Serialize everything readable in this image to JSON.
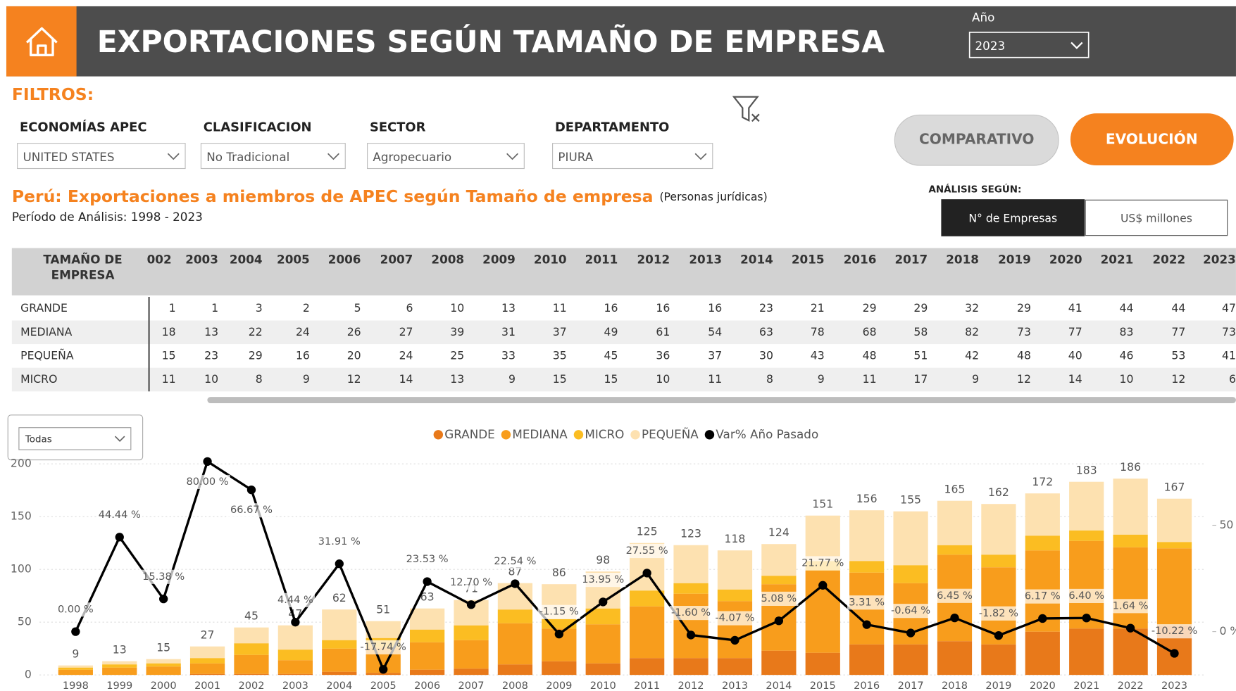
{
  "header": {
    "title": "EXPORTACIONES SEGÚN TAMAÑO DE EMPRESA",
    "year_label": "Año",
    "year_value": "2023"
  },
  "filters": {
    "title": "FILTROS:",
    "items": [
      {
        "label": "ECONOMÍAS APEC",
        "value": "UNITED STATES"
      },
      {
        "label": "CLASIFICACION",
        "value": "No Tradicional"
      },
      {
        "label": "SECTOR",
        "value": "Agropecuario"
      },
      {
        "label": "DEPARTAMENTO",
        "value": "PIURA"
      }
    ]
  },
  "buttons": [
    "COMPARATIVO",
    "EVOLUCIÓN"
  ],
  "analysis": {
    "label": "ANÁLISIS SEGÚN:",
    "options": [
      "N° de Empresas",
      "US$ millones"
    ]
  },
  "report": {
    "title": "Perú: Exportaciones a miembros de APEC según Tamaño de empresa",
    "note": "(Personas jurídicas)",
    "period": "Período de Análisis:  1998 - 2023"
  },
  "table": {
    "header": [
      "TAMAÑO DE",
      "EMPRESA"
    ],
    "columns": [
      "002",
      "2003",
      "2004",
      "2005",
      "2006",
      "2007",
      "2008",
      "2009",
      "2010",
      "2011",
      "2012",
      "2013",
      "2014",
      "2015",
      "2016",
      "2017",
      "2018",
      "2019",
      "2020",
      "2021",
      "2022",
      "2023"
    ],
    "rows": [
      {
        "name": "GRANDE",
        "values": [
          1,
          1,
          3,
          2,
          5,
          6,
          10,
          13,
          11,
          16,
          16,
          16,
          23,
          21,
          29,
          29,
          32,
          29,
          41,
          44,
          44,
          47
        ]
      },
      {
        "name": "MEDIANA",
        "values": [
          18,
          13,
          22,
          24,
          26,
          27,
          39,
          31,
          37,
          49,
          61,
          54,
          63,
          78,
          68,
          58,
          82,
          73,
          77,
          83,
          77,
          73
        ]
      },
      {
        "name": "PEQUEÑA",
        "values": [
          15,
          23,
          29,
          16,
          20,
          24,
          25,
          33,
          35,
          45,
          36,
          37,
          30,
          43,
          48,
          51,
          42,
          48,
          40,
          46,
          53,
          41
        ]
      },
      {
        "name": "MICRO",
        "values": [
          11,
          10,
          8,
          9,
          12,
          14,
          13,
          9,
          15,
          15,
          10,
          11,
          8,
          9,
          11,
          17,
          9,
          12,
          14,
          10,
          12,
          6
        ]
      }
    ]
  },
  "slicer": "Todas",
  "chart_data": {
    "type": "bar",
    "stacked": true,
    "categories": [
      "1998",
      "1999",
      "2000",
      "2001",
      "2002",
      "2003",
      "2004",
      "2005",
      "2006",
      "2007",
      "2008",
      "2009",
      "2010",
      "2011",
      "2012",
      "2013",
      "2014",
      "2015",
      "2016",
      "2017",
      "2018",
      "2019",
      "2020",
      "2021",
      "2022",
      "2023"
    ],
    "series": [
      {
        "name": "GRANDE",
        "color": "#e8791a",
        "values": [
          0,
          0,
          0,
          1,
          1,
          1,
          3,
          2,
          5,
          6,
          10,
          13,
          11,
          16,
          16,
          16,
          23,
          21,
          29,
          29,
          32,
          29,
          41,
          44,
          44,
          47
        ]
      },
      {
        "name": "MEDIANA",
        "color": "#f89d1c",
        "values": [
          5,
          7,
          8,
          10,
          18,
          13,
          22,
          24,
          26,
          27,
          39,
          31,
          37,
          49,
          61,
          54,
          63,
          78,
          68,
          58,
          82,
          73,
          77,
          83,
          77,
          73
        ]
      },
      {
        "name": "MICRO",
        "color": "#fbbd22",
        "values": [
          2,
          3,
          3,
          5,
          11,
          10,
          8,
          9,
          12,
          14,
          13,
          9,
          15,
          15,
          10,
          11,
          8,
          9,
          11,
          17,
          9,
          12,
          14,
          10,
          12,
          6
        ]
      },
      {
        "name": "PEQUEÑA",
        "color": "#fde1b0",
        "values": [
          2,
          3,
          4,
          11,
          15,
          23,
          29,
          16,
          20,
          24,
          25,
          33,
          35,
          45,
          36,
          37,
          30,
          43,
          48,
          51,
          42,
          48,
          40,
          46,
          53,
          41
        ]
      },
      {
        "name": "Var% Año Pasado",
        "color": "#000000",
        "type": "line",
        "axis": "y2",
        "values": [
          0.0,
          44.44,
          15.38,
          80.0,
          66.67,
          4.44,
          31.91,
          -17.74,
          23.53,
          12.7,
          22.54,
          -1.15,
          13.95,
          27.55,
          -1.6,
          -4.07,
          5.08,
          21.77,
          3.31,
          -0.64,
          6.45,
          -1.82,
          6.17,
          6.4,
          1.64,
          -10.22
        ],
        "value_labels": [
          "0.00 %",
          "44.44 %",
          "15.38 %",
          "80.00 %",
          "66.67 %",
          "4.44 %",
          "31.91 %",
          "-17.74 %",
          "23.53 %",
          "12.70 %",
          "22.54 %",
          "-1.15 %",
          "13.95 %",
          "27.55 %",
          "-1.60 %",
          "-4.07 %",
          "5.08 %",
          "21.77 %",
          "3.31 %",
          "-0.64 %",
          "6.45 %",
          "-1.82 %",
          "6.17 %",
          "6.40 %",
          "1.64 %",
          "-10.22 %"
        ]
      }
    ],
    "totals": [
      9,
      13,
      15,
      27,
      45,
      47,
      62,
      51,
      63,
      71,
      87,
      86,
      98,
      125,
      123,
      118,
      124,
      151,
      156,
      155,
      165,
      162,
      172,
      183,
      186,
      167
    ],
    "ylim": [
      0,
      200
    ],
    "yticks": [
      0,
      50,
      100,
      150,
      200
    ],
    "y2lim": [
      -20.37,
      78.89
    ],
    "y2ticks": [
      {
        "value": 50,
        "label": "50 %"
      },
      {
        "value": 0,
        "label": "0 %"
      }
    ],
    "grid": true,
    "legend": "top"
  }
}
